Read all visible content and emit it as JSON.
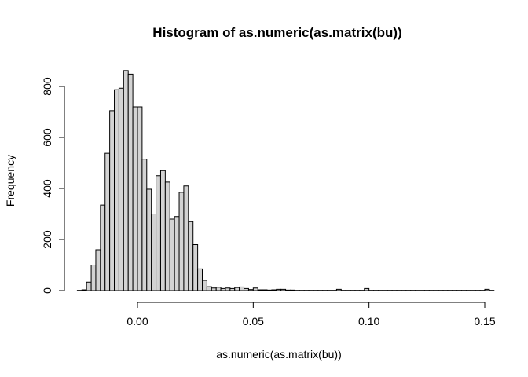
{
  "chart_data": {
    "type": "bar",
    "title": "Histogram of as.numeric(as.matrix(bu))",
    "xlabel": "as.numeric(as.matrix(bu))",
    "ylabel": "Frequency",
    "xlim": [
      -0.026,
      0.15
    ],
    "ylim": [
      0,
      880
    ],
    "x_ticks": [
      0.0,
      0.05,
      0.1,
      0.15
    ],
    "x_tick_labels": [
      "0.00",
      "0.05",
      "0.10",
      "0.15"
    ],
    "y_ticks": [
      0,
      200,
      400,
      600,
      800
    ],
    "y_tick_labels": [
      "0",
      "200",
      "400",
      "600",
      "800"
    ],
    "bin_width": 0.002,
    "bin_start": -0.026,
    "values": [
      1,
      3,
      33,
      100,
      160,
      335,
      538,
      705,
      787,
      793,
      862,
      848,
      720,
      720,
      515,
      397,
      300,
      450,
      470,
      425,
      280,
      290,
      385,
      410,
      270,
      180,
      85,
      40,
      15,
      10,
      13,
      8,
      10,
      8,
      12,
      14,
      8,
      4,
      10,
      3,
      3,
      2,
      3,
      5,
      5,
      2,
      2,
      1,
      1,
      1,
      1,
      1,
      1,
      1,
      1,
      1,
      5,
      1,
      1,
      1,
      1,
      1,
      8,
      1,
      1,
      1,
      1,
      1,
      1,
      1,
      1,
      1,
      1,
      1,
      1,
      1,
      1,
      1,
      1,
      1,
      1,
      1,
      1,
      1,
      1,
      1,
      1,
      1,
      5,
      1
    ],
    "grid": false,
    "legend": "none"
  }
}
